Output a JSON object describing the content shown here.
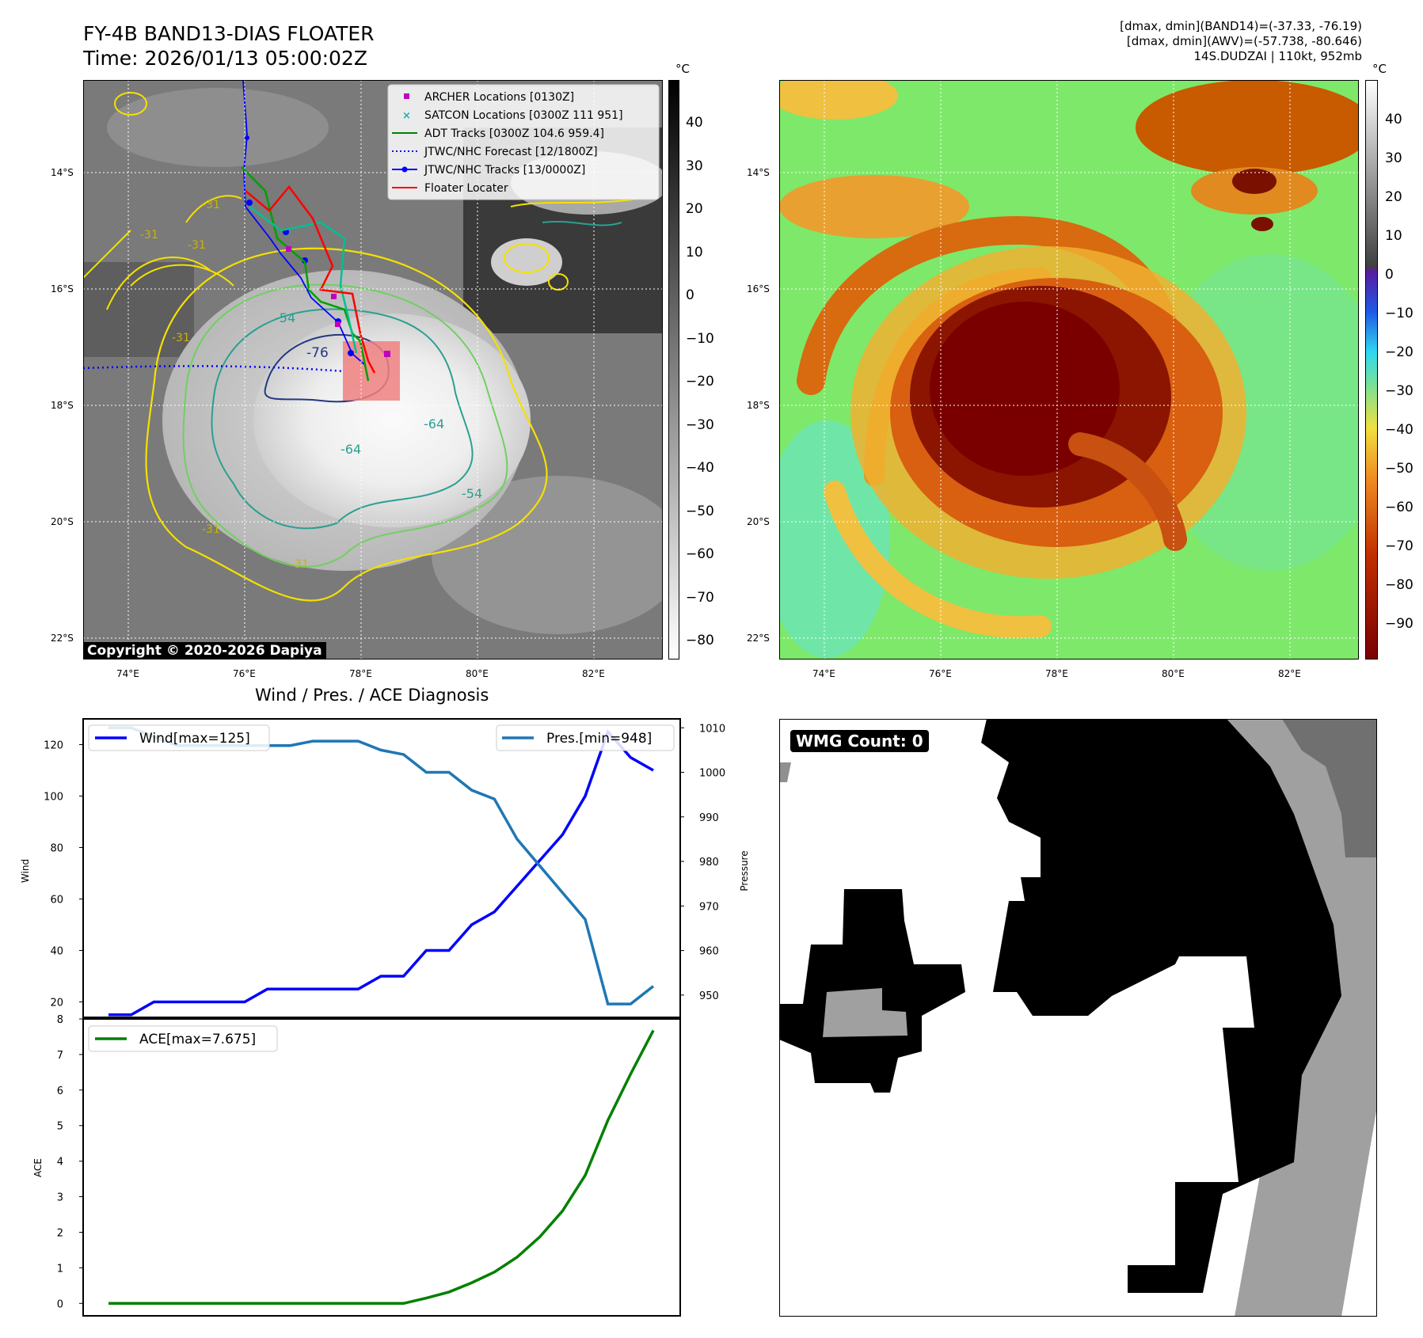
{
  "header": {
    "title_line1": "FY-4B BAND13-DIAS FLOATER",
    "title_line2": "Time: 2026/01/13 05:00:02Z",
    "info_line1": "[dmax, dmin](BAND14)=(-37.33, -76.19)",
    "info_line2": "[dmax, dmin](AWV)=(-57.738, -80.646)",
    "info_line3": "14S.DUDZAI | 110kt, 952mb"
  },
  "ir_panel": {
    "unit": "°C",
    "colorbar_ticks": [
      "40",
      "30",
      "20",
      "10",
      "0",
      "−10",
      "−20",
      "−30",
      "−40",
      "−50",
      "−60",
      "−70",
      "−80"
    ],
    "lat_labels": [
      "14°S",
      "16°S",
      "18°S",
      "20°S",
      "22°S"
    ],
    "lon_labels": [
      "74°E",
      "76°E",
      "78°E",
      "80°E",
      "82°E"
    ],
    "watermark": "Copyright © 2020-2026 Dapiya",
    "contour_labels": [
      "-31",
      "-31",
      "-31",
      "-31",
      "-31",
      "-31",
      "-54",
      "-54",
      "-64",
      "-64",
      "-76"
    ],
    "legend": [
      {
        "label": "ARCHER Locations [0130Z]",
        "color": "#c000c0",
        "marker": "square"
      },
      {
        "label": "SATCON Locations [0300Z 111 951]",
        "color": "#20b0b0",
        "marker": "x"
      },
      {
        "label": "ADT Tracks [0300Z 104.6 959.4]",
        "color": "#008000",
        "marker": "line"
      },
      {
        "label": "JTWC/NHC Forecast [12/1800Z]",
        "color": "#0000ff",
        "marker": "dotted"
      },
      {
        "label": "JTWC/NHC Tracks [13/0000Z]",
        "color": "#0000ff",
        "marker": "dot-line"
      },
      {
        "label": "Floater Locater",
        "color": "#ff0000",
        "marker": "line"
      }
    ]
  },
  "wv_panel": {
    "unit": "°C",
    "colorbar_ticks": [
      "40",
      "30",
      "20",
      "10",
      "0",
      "−10",
      "−20",
      "−30",
      "−40",
      "−50",
      "−60",
      "−70",
      "−80",
      "−90"
    ],
    "lat_labels": [
      "14°S",
      "16°S",
      "18°S",
      "20°S",
      "22°S"
    ],
    "lon_labels": [
      "74°E",
      "76°E",
      "78°E",
      "80°E",
      "82°E"
    ]
  },
  "wmg_panel": {
    "badge": "WMG Count: 0"
  },
  "chart_data": [
    {
      "type": "line",
      "title": "Wind / Pres. / ACE Diagnosis",
      "ylabel": "Wind",
      "ylabel_right": "Pressure",
      "ylim": [
        14,
        130
      ],
      "ylim_right": [
        945,
        1012
      ],
      "yticks": [
        20,
        40,
        60,
        80,
        100,
        120
      ],
      "yticks_right": [
        950,
        960,
        970,
        980,
        990,
        1000,
        1010
      ],
      "series": [
        {
          "name": "Wind[max=125]",
          "color": "#0000ff",
          "values": [
            15,
            15,
            20,
            20,
            20,
            20,
            20,
            25,
            25,
            25,
            25,
            25,
            30,
            30,
            40,
            40,
            50,
            55,
            65,
            75,
            85,
            100,
            125,
            115,
            110
          ]
        },
        {
          "name": "Pres.[min=948]",
          "color": "#1f77b4",
          "axis": "right",
          "values": [
            1010,
            1010,
            1008,
            1006,
            1006,
            1006,
            1006,
            1006,
            1006,
            1007,
            1007,
            1007,
            1005,
            1004,
            1000,
            1000,
            996,
            994,
            985,
            979,
            973,
            967,
            948,
            948,
            952
          ]
        }
      ]
    },
    {
      "type": "line",
      "ylabel": "ACE",
      "ylim": [
        -0.35,
        8
      ],
      "yticks": [
        0,
        1,
        2,
        3,
        4,
        5,
        6,
        7,
        8
      ],
      "series": [
        {
          "name": "ACE[max=7.675]",
          "color": "#008000",
          "values": [
            0,
            0,
            0,
            0,
            0,
            0,
            0,
            0,
            0,
            0,
            0,
            0,
            0,
            0,
            0.15,
            0.32,
            0.58,
            0.88,
            1.3,
            1.87,
            2.6,
            3.6,
            5.15,
            6.45,
            7.675
          ]
        }
      ]
    }
  ]
}
